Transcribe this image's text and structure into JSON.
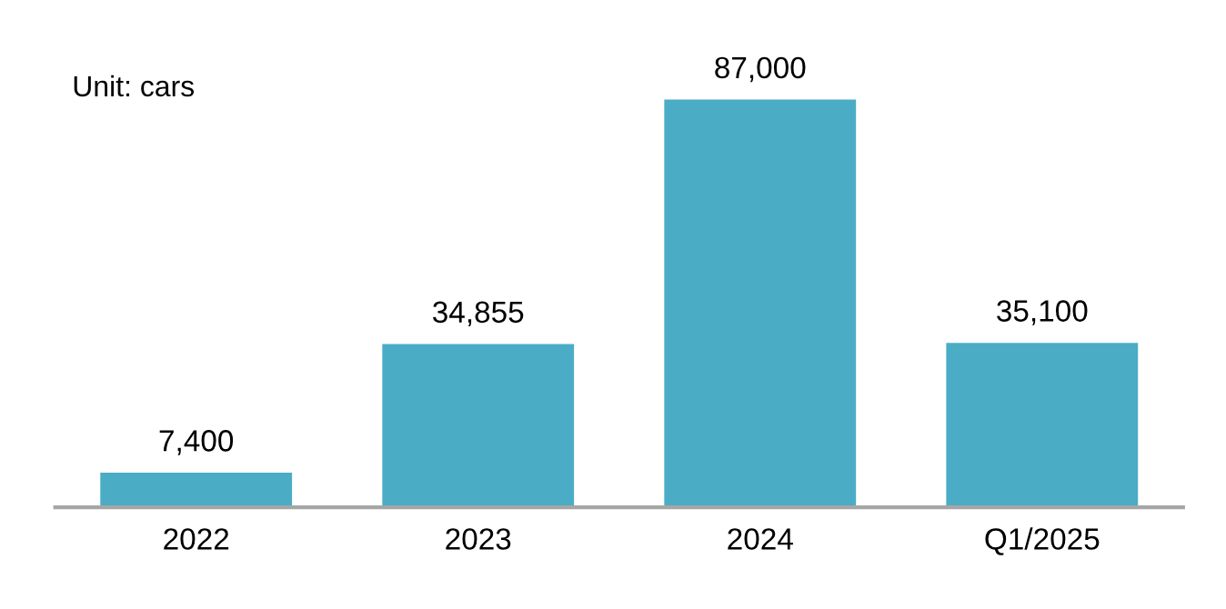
{
  "chart_data": {
    "type": "bar",
    "categories": [
      "2022",
      "2023",
      "2024",
      "Q1/2025"
    ],
    "values": [
      7400,
      34855,
      87000,
      35100
    ],
    "value_labels": [
      "7,400",
      "34,855",
      "87,000",
      "35,100"
    ],
    "color": "#4bacc6",
    "annotations": [
      "Unit: cars"
    ],
    "grid": false,
    "legend": false
  }
}
